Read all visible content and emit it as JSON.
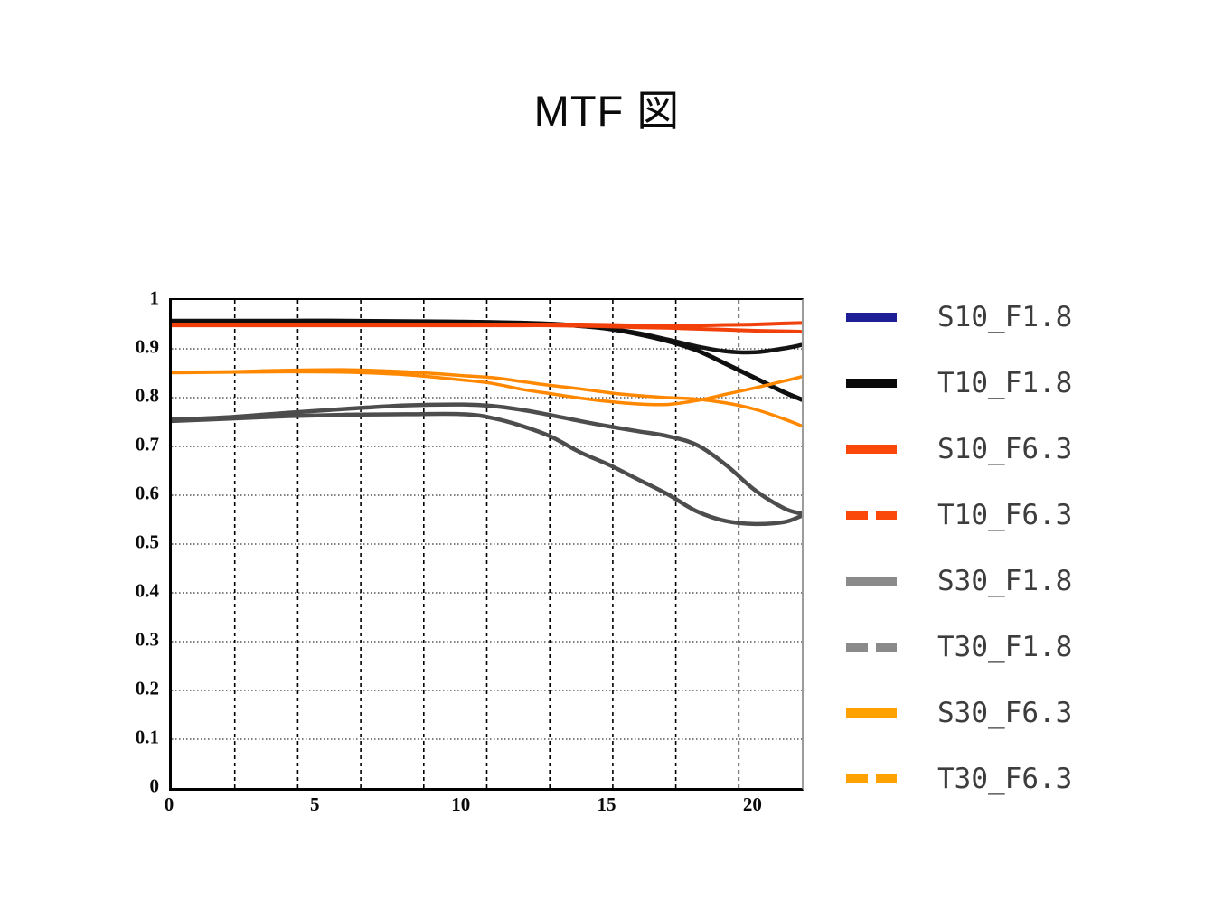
{
  "title": "MTF 図",
  "colors": {
    "background": "#ffffff",
    "axis": "#000000",
    "right_border": "#9c9c9c",
    "legend_text": "#3d3d3d",
    "tick_text": "#0a0a0a"
  },
  "chart_data": {
    "type": "line",
    "title": "MTF 図",
    "xlabel": "",
    "ylabel": "",
    "xlim": [
      0,
      21.6
    ],
    "ylim": [
      0,
      1
    ],
    "x_grid_divisions": 10,
    "y_grid_divisions": 10,
    "grid": "vertical dashed black lines every tenth of axis, horizontal dotted black lines every 0.1",
    "legend_position": "right",
    "x_tick_values": [
      0,
      5,
      10,
      15,
      20
    ],
    "x_tick_labels": [
      "0",
      "5",
      "10",
      "15",
      "20"
    ],
    "y_tick_values": [
      0,
      0.1,
      0.2,
      0.3,
      0.4,
      0.5,
      0.6,
      0.7,
      0.8,
      0.9,
      1
    ],
    "y_tick_labels": [
      "0",
      "0.1",
      "0.2",
      "0.3",
      "0.4",
      "0.5",
      "0.6",
      "0.7",
      "0.8",
      "0.9",
      "1"
    ],
    "x": [
      0,
      2,
      4,
      6,
      8,
      10,
      11,
      12,
      13,
      14,
      15,
      16,
      17,
      18,
      19,
      20,
      21,
      21.6
    ],
    "series": [
      {
        "name": "S10_F1.8",
        "legend_color": "#1e1e96",
        "line_color": "#141414",
        "dash": "solid",
        "width": 4.5,
        "values": [
          0.957,
          0.957,
          0.957,
          0.957,
          0.956,
          0.955,
          0.954,
          0.953,
          0.951,
          0.947,
          0.941,
          0.932,
          0.919,
          0.905,
          0.895,
          0.893,
          0.901,
          0.908
        ]
      },
      {
        "name": "T10_F1.8",
        "legend_color": "#0a0a0a",
        "line_color": "#0f0f0f",
        "dash": "solid",
        "width": 5,
        "values": [
          0.957,
          0.957,
          0.957,
          0.957,
          0.956,
          0.955,
          0.954,
          0.953,
          0.951,
          0.947,
          0.941,
          0.93,
          0.916,
          0.897,
          0.869,
          0.84,
          0.811,
          0.796
        ]
      },
      {
        "name": "S10_F6.3",
        "legend_color": "#fa470a",
        "line_color": "#f1400a",
        "dash": "solid",
        "width": 4,
        "values": [
          0.95,
          0.95,
          0.95,
          0.95,
          0.95,
          0.95,
          0.95,
          0.95,
          0.95,
          0.95,
          0.949,
          0.948,
          0.948,
          0.948,
          0.949,
          0.95,
          0.952,
          0.953
        ]
      },
      {
        "name": "T10_F6.3",
        "legend_color": "#fa470a",
        "line_color": "#f1400a",
        "dash": "dashed",
        "width": 4,
        "values": [
          0.948,
          0.948,
          0.948,
          0.948,
          0.948,
          0.948,
          0.948,
          0.948,
          0.948,
          0.947,
          0.946,
          0.944,
          0.943,
          0.941,
          0.939,
          0.937,
          0.936,
          0.935
        ]
      },
      {
        "name": "S30_F1.8",
        "legend_color": "#8a8a8a",
        "line_color": "#4d4d4d",
        "dash": "solid",
        "width": 4.5,
        "values": [
          0.755,
          0.76,
          0.769,
          0.777,
          0.784,
          0.786,
          0.783,
          0.775,
          0.764,
          0.752,
          0.741,
          0.731,
          0.721,
          0.703,
          0.662,
          0.61,
          0.573,
          0.562
        ]
      },
      {
        "name": "T30_F1.8",
        "legend_color": "#8a8a8a",
        "line_color": "#4d4d4d",
        "dash": "dashed",
        "width": 4.5,
        "values": [
          0.752,
          0.757,
          0.762,
          0.765,
          0.766,
          0.766,
          0.758,
          0.742,
          0.72,
          0.688,
          0.662,
          0.632,
          0.602,
          0.567,
          0.547,
          0.541,
          0.545,
          0.558
        ]
      },
      {
        "name": "S30_F6.3",
        "legend_color": "#ffa200",
        "line_color": "#ff8800",
        "dash": "solid",
        "width": 3.5,
        "values": [
          0.851,
          0.852,
          0.853,
          0.852,
          0.847,
          0.836,
          0.829,
          0.817,
          0.808,
          0.799,
          0.792,
          0.787,
          0.786,
          0.794,
          0.807,
          0.82,
          0.834,
          0.843
        ]
      },
      {
        "name": "T30_F6.3",
        "legend_color": "#ffa200",
        "line_color": "#ff8800",
        "dash": "dashed",
        "width": 3.5,
        "values": [
          0.852,
          0.853,
          0.856,
          0.857,
          0.853,
          0.845,
          0.841,
          0.833,
          0.825,
          0.818,
          0.81,
          0.804,
          0.8,
          0.797,
          0.789,
          0.776,
          0.756,
          0.742
        ]
      }
    ]
  }
}
